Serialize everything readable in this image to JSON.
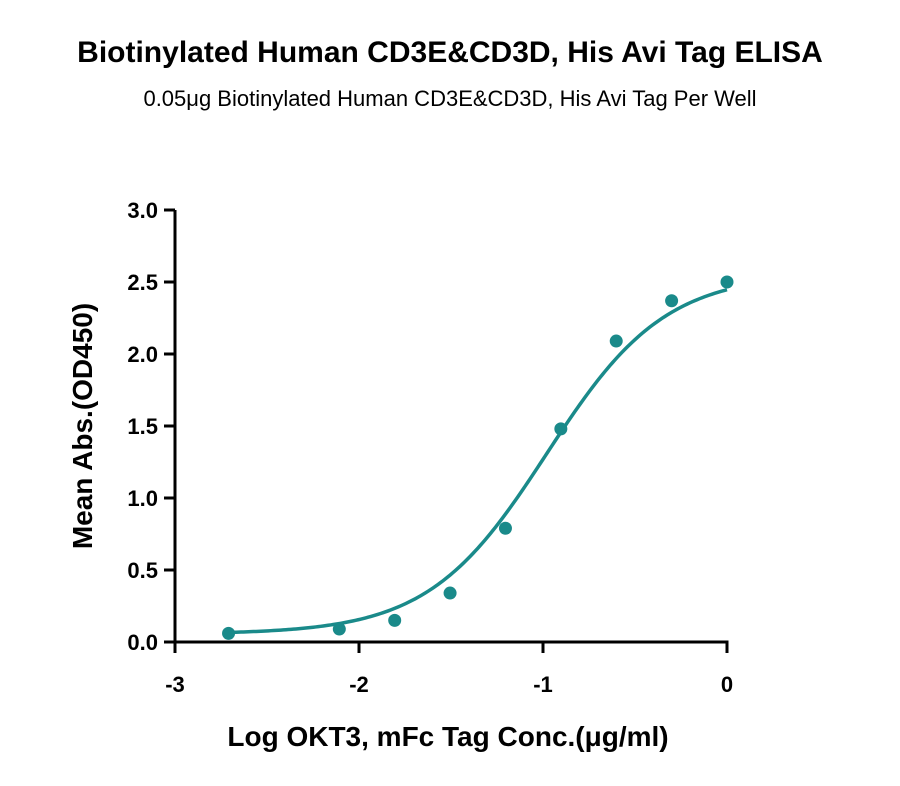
{
  "chart_data": {
    "type": "line",
    "title": "Biotinylated Human CD3E&CD3D, His Avi Tag ELISA",
    "subtitle": "0.05μg Biotinylated Human CD3E&CD3D, His Avi Tag Per Well",
    "xlabel": "Log OKT3, mFc Tag Conc.(μg/ml)",
    "ylabel": "Mean Abs.(OD450)",
    "xlim": [
      -3,
      0
    ],
    "ylim": [
      0,
      3.0
    ],
    "x_ticks": [
      -3,
      -2,
      -1,
      0
    ],
    "x_tick_labels": [
      "-3",
      "-2",
      "-1",
      "0"
    ],
    "y_ticks": [
      0.0,
      0.5,
      1.0,
      1.5,
      2.0,
      2.5,
      3.0
    ],
    "y_tick_labels": [
      "0.0",
      "0.5",
      "1.0",
      "1.5",
      "2.0",
      "2.5",
      "3.0"
    ],
    "grid": false,
    "series": [
      {
        "color": "#1a8a8a",
        "points": {
          "x": [
            -2.709,
            -2.107,
            -1.806,
            -1.505,
            -1.204,
            -0.903,
            -0.602,
            -0.301,
            0.0
          ],
          "y": [
            0.06,
            0.09,
            0.15,
            0.34,
            0.79,
            1.48,
            2.09,
            2.37,
            2.5
          ]
        },
        "fit": {
          "model": "4PL",
          "bottom": 0.055,
          "top": 2.56,
          "log_ec50": -0.98,
          "hill": 1.35
        }
      }
    ]
  }
}
